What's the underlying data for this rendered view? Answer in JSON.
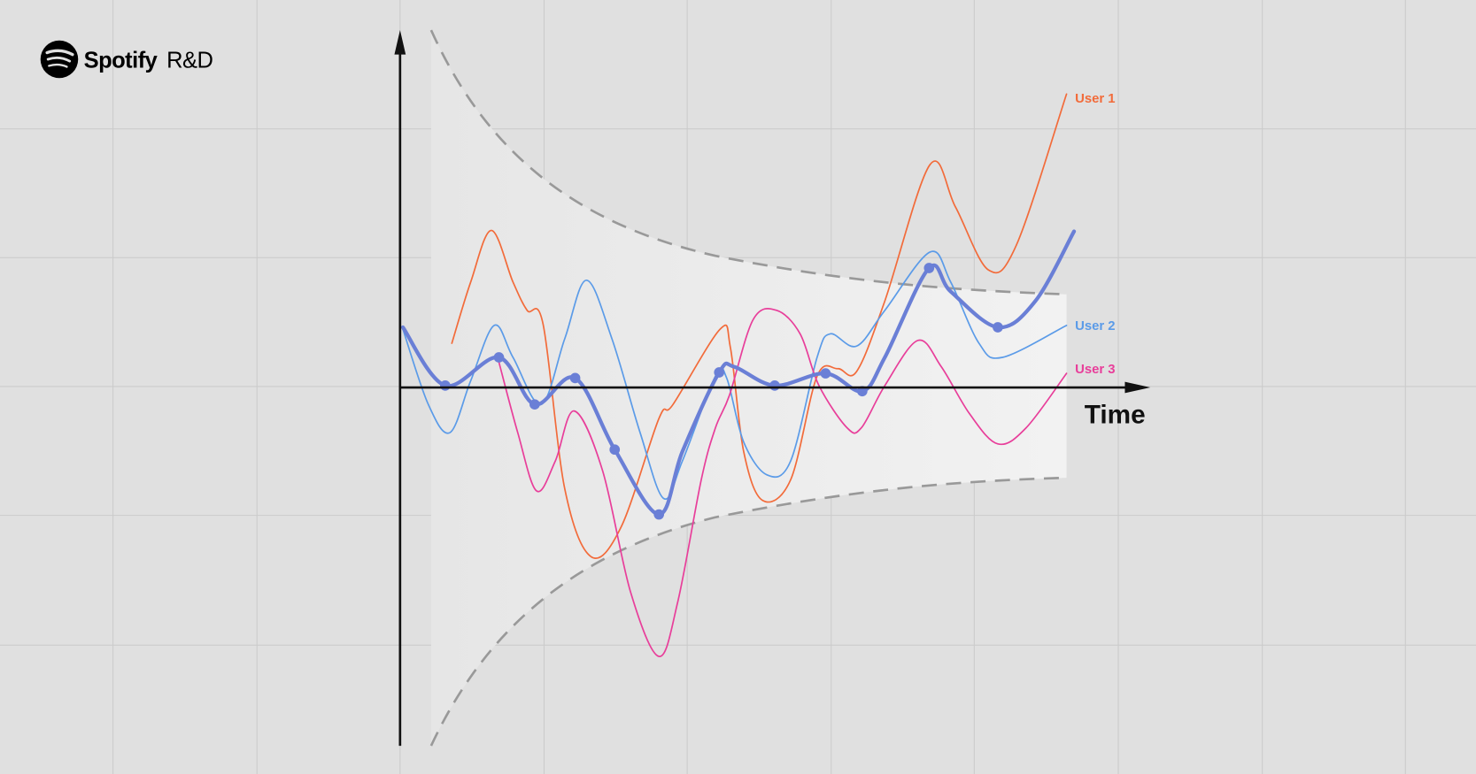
{
  "logo": {
    "brand": "Spotify",
    "division": "R&D"
  },
  "labels": {
    "user_1": "User 1",
    "user_2": "User 2",
    "user_3": "User 3"
  },
  "axis": {
    "x_label": "Time"
  }
}
